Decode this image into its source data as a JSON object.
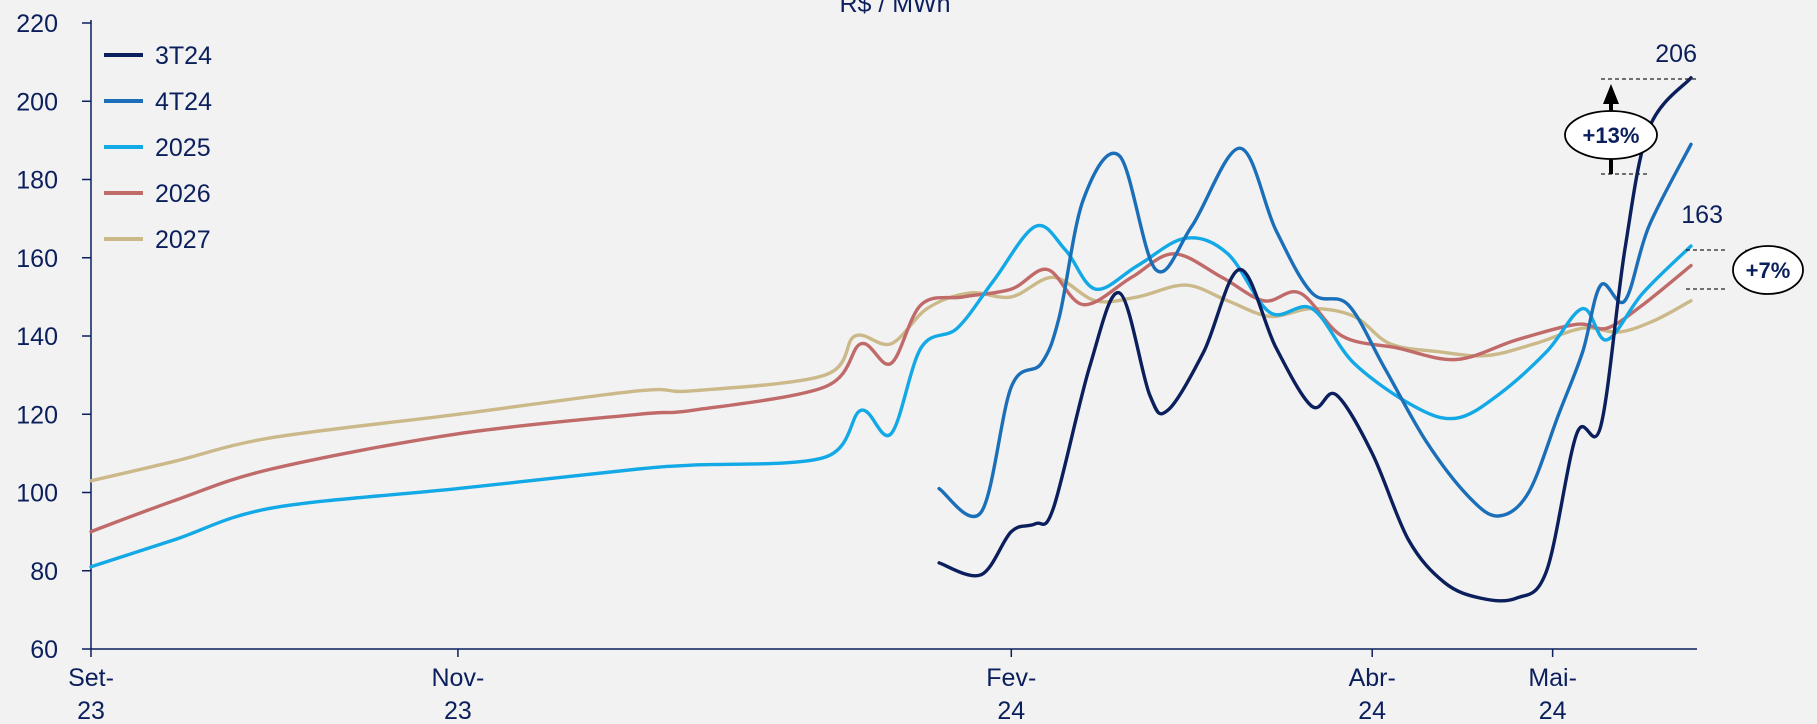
{
  "chart_data": {
    "type": "line",
    "title": "R$ / MWh",
    "xlabel": "",
    "ylabel": "",
    "ylim": [
      60,
      220
    ],
    "yticks": [
      60,
      80,
      100,
      120,
      140,
      160,
      180,
      200,
      220
    ],
    "x_range": [
      "2023-09-01",
      "2024-05-25"
    ],
    "x_ticks": [
      {
        "date": "2023-09-01",
        "label_line1": "Set-",
        "label_line2": "23"
      },
      {
        "date": "2023-11-01",
        "label_line1": "Nov-",
        "label_line2": "23"
      },
      {
        "date": "2024-02-01",
        "label_line1": "Fev-",
        "label_line2": "24"
      },
      {
        "date": "2024-04-01",
        "label_line1": "Abr-",
        "label_line2": "24"
      },
      {
        "date": "2024-05-01",
        "label_line1": "Mai-",
        "label_line2": "24"
      }
    ],
    "grid": false,
    "legend_position": "top-left",
    "series": [
      {
        "name": "3T24",
        "color": "#0b1f5c",
        "points": [
          [
            "2024-01-20",
            82
          ],
          [
            "2024-01-27",
            79
          ],
          [
            "2024-02-01",
            90
          ],
          [
            "2024-02-05",
            92
          ],
          [
            "2024-02-08",
            96
          ],
          [
            "2024-02-14",
            132
          ],
          [
            "2024-02-19",
            151
          ],
          [
            "2024-02-24",
            125
          ],
          [
            "2024-02-27",
            121
          ],
          [
            "2024-03-04",
            136
          ],
          [
            "2024-03-10",
            157
          ],
          [
            "2024-03-16",
            137
          ],
          [
            "2024-03-22",
            122
          ],
          [
            "2024-03-26",
            125
          ],
          [
            "2024-04-01",
            110
          ],
          [
            "2024-04-07",
            88
          ],
          [
            "2024-04-13",
            77
          ],
          [
            "2024-04-19",
            73
          ],
          [
            "2024-04-25",
            73
          ],
          [
            "2024-04-30",
            80
          ],
          [
            "2024-05-05",
            115
          ],
          [
            "2024-05-09",
            117
          ],
          [
            "2024-05-13",
            162
          ],
          [
            "2024-05-17",
            193
          ],
          [
            "2024-05-24",
            206
          ]
        ]
      },
      {
        "name": "4T24",
        "color": "#1a6fb8",
        "points": [
          [
            "2024-01-20",
            101
          ],
          [
            "2024-01-27",
            95
          ],
          [
            "2024-02-01",
            127
          ],
          [
            "2024-02-06",
            133
          ],
          [
            "2024-02-09",
            145
          ],
          [
            "2024-02-13",
            175
          ],
          [
            "2024-02-19",
            186
          ],
          [
            "2024-02-25",
            157
          ],
          [
            "2024-03-02",
            168
          ],
          [
            "2024-03-10",
            188
          ],
          [
            "2024-03-16",
            167
          ],
          [
            "2024-03-22",
            151
          ],
          [
            "2024-03-28",
            148
          ],
          [
            "2024-04-03",
            132
          ],
          [
            "2024-04-10",
            113
          ],
          [
            "2024-04-17",
            99
          ],
          [
            "2024-04-22",
            94
          ],
          [
            "2024-04-27",
            100
          ],
          [
            "2024-05-02",
            120
          ],
          [
            "2024-05-06",
            136
          ],
          [
            "2024-05-09",
            153
          ],
          [
            "2024-05-13",
            149
          ],
          [
            "2024-05-17",
            168
          ],
          [
            "2024-05-24",
            189
          ]
        ]
      },
      {
        "name": "2025",
        "color": "#12a9e6",
        "points": [
          [
            "2023-09-01",
            81
          ],
          [
            "2023-09-15",
            88
          ],
          [
            "2023-10-01",
            96
          ],
          [
            "2023-11-01",
            101
          ],
          [
            "2023-12-01",
            106
          ],
          [
            "2023-12-10",
            107
          ],
          [
            "2024-01-01",
            109
          ],
          [
            "2024-01-07",
            121
          ],
          [
            "2024-01-12",
            115
          ],
          [
            "2024-01-17",
            137
          ],
          [
            "2024-01-23",
            142
          ],
          [
            "2024-01-29",
            154
          ],
          [
            "2024-02-05",
            168
          ],
          [
            "2024-02-10",
            162
          ],
          [
            "2024-02-15",
            152
          ],
          [
            "2024-02-22",
            158
          ],
          [
            "2024-03-01",
            165
          ],
          [
            "2024-03-08",
            161
          ],
          [
            "2024-03-15",
            146
          ],
          [
            "2024-03-22",
            147
          ],
          [
            "2024-03-29",
            133
          ],
          [
            "2024-04-08",
            122
          ],
          [
            "2024-04-15",
            119
          ],
          [
            "2024-04-22",
            125
          ],
          [
            "2024-04-30",
            136
          ],
          [
            "2024-05-06",
            147
          ],
          [
            "2024-05-10",
            139
          ],
          [
            "2024-05-16",
            151
          ],
          [
            "2024-05-24",
            163
          ]
        ]
      },
      {
        "name": "2026",
        "color": "#c06a6a",
        "points": [
          [
            "2023-09-01",
            90
          ],
          [
            "2023-09-15",
            98
          ],
          [
            "2023-10-01",
            106
          ],
          [
            "2023-11-01",
            115
          ],
          [
            "2023-12-01",
            120
          ],
          [
            "2023-12-10",
            121
          ],
          [
            "2024-01-01",
            127
          ],
          [
            "2024-01-07",
            138
          ],
          [
            "2024-01-12",
            133
          ],
          [
            "2024-01-17",
            148
          ],
          [
            "2024-01-24",
            150
          ],
          [
            "2024-02-01",
            152
          ],
          [
            "2024-02-07",
            157
          ],
          [
            "2024-02-13",
            148
          ],
          [
            "2024-02-21",
            155
          ],
          [
            "2024-02-28",
            161
          ],
          [
            "2024-03-07",
            155
          ],
          [
            "2024-03-14",
            149
          ],
          [
            "2024-03-20",
            151
          ],
          [
            "2024-03-27",
            140
          ],
          [
            "2024-04-05",
            137
          ],
          [
            "2024-04-15",
            134
          ],
          [
            "2024-04-25",
            139
          ],
          [
            "2024-05-05",
            143
          ],
          [
            "2024-05-10",
            142
          ],
          [
            "2024-05-16",
            148
          ],
          [
            "2024-05-24",
            158
          ]
        ]
      },
      {
        "name": "2027",
        "color": "#cbb98a",
        "points": [
          [
            "2023-09-01",
            103
          ],
          [
            "2023-09-15",
            108
          ],
          [
            "2023-10-01",
            114
          ],
          [
            "2023-11-01",
            120
          ],
          [
            "2023-12-01",
            126
          ],
          [
            "2023-12-10",
            126
          ],
          [
            "2024-01-01",
            130
          ],
          [
            "2024-01-06",
            140
          ],
          [
            "2024-01-12",
            138
          ],
          [
            "2024-01-18",
            147
          ],
          [
            "2024-01-25",
            151
          ],
          [
            "2024-02-01",
            150
          ],
          [
            "2024-02-08",
            155
          ],
          [
            "2024-02-15",
            149
          ],
          [
            "2024-02-22",
            150
          ],
          [
            "2024-03-01",
            153
          ],
          [
            "2024-03-08",
            149
          ],
          [
            "2024-03-15",
            145
          ],
          [
            "2024-03-22",
            147
          ],
          [
            "2024-03-29",
            145
          ],
          [
            "2024-04-04",
            138
          ],
          [
            "2024-04-12",
            136
          ],
          [
            "2024-04-20",
            135
          ],
          [
            "2024-04-28",
            138
          ],
          [
            "2024-05-06",
            142
          ],
          [
            "2024-05-12",
            141
          ],
          [
            "2024-05-18",
            144
          ],
          [
            "2024-05-24",
            149
          ]
        ]
      }
    ],
    "annotations": {
      "value_206": "206",
      "value_163": "163",
      "pct_13": "+13%",
      "pct_7": "+7%"
    }
  }
}
